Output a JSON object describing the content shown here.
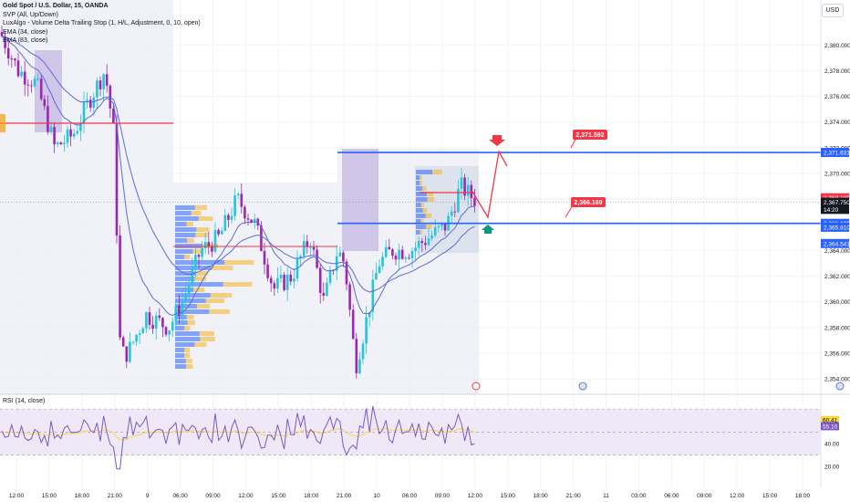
{
  "symbol_title": "Gold Spot / U.S. Dollar, 15, OANDA",
  "indicators": [
    "SVP (All, Up/Down)",
    "LuxAlgo - Volume Delta Trailing Stop (1, H/L, Adjustment, 0, 10, open)",
    "EMA (34, close)",
    "EMA (83, close)"
  ],
  "currency_button": "USD",
  "price_axis": {
    "ticks": [
      "2,380.000",
      "2,378.000",
      "2,376.000",
      "2,374.000",
      "2,372.000",
      "2,370.000",
      "2,368.000",
      "2,366.000",
      "2,364.000",
      "2,362.000",
      "2,360.000",
      "2,358.000",
      "2,356.000",
      "2,354.000"
    ],
    "range": [
      2352.8,
      2383.5
    ]
  },
  "price_labels": [
    {
      "text": "2,371.631",
      "value": 2371.631,
      "color": "#2962ff"
    },
    {
      "text": "2,368.100",
      "value": 2368.1,
      "color": "#f23645"
    },
    {
      "text": "2,367.750",
      "value": 2367.75,
      "color": "#131722"
    },
    {
      "text": "14:20",
      "value": 2367.2,
      "color": "#131722"
    },
    {
      "text": "2,366.109",
      "value": 2366.109,
      "color": "#2962ff"
    },
    {
      "text": "2,365.810",
      "value": 2365.81,
      "color": "#2962ff"
    },
    {
      "text": "2,364.541",
      "value": 2364.541,
      "color": "#2962ff"
    }
  ],
  "callouts": [
    {
      "text": "2,371.592",
      "value": 2371.592
    },
    {
      "text": "2,366.169",
      "value": 2366.169
    }
  ],
  "rsi": {
    "title": "RSI (14, close)",
    "ticks": [
      "60.00",
      "40.00",
      "20.00"
    ],
    "labels": [
      {
        "text": "60.41",
        "value": 60.41
      },
      {
        "text": "55.10",
        "value": 55.1
      }
    ],
    "range": [
      13,
      82
    ]
  },
  "time_axis": [
    "12:00",
    "15:00",
    "18:00",
    "21:00",
    "9",
    "06:00",
    "09:00",
    "12:00",
    "15:00",
    "18:00",
    "21:00",
    "10",
    "06:00",
    "09:00",
    "12:00",
    "15:00",
    "18:00",
    "21:00",
    "11",
    "03:00",
    "06:00",
    "09:00",
    "12:00",
    "15:00",
    "18:00"
  ],
  "colors": {
    "bull": "#26c6da",
    "bear": "#9c27b0",
    "level_line": "#2962ff",
    "red": "#f23645",
    "teal_arrow": "#089981",
    "ema": "#5b6cd9",
    "rsi_line": "#7e57c2",
    "rsi_ma": "#f5d742"
  }
}
